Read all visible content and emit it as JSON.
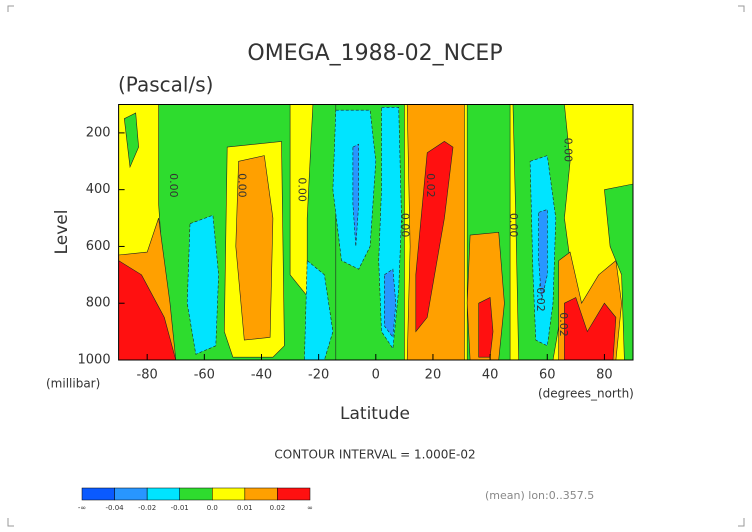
{
  "chart_data": {
    "type": "contour",
    "title": "OMEGA_1988-02_NCEP",
    "subtitle": "(Pascal/s)",
    "x_label": "Latitude",
    "y_label": "Level",
    "x_unit": "(degrees_north)",
    "y_unit": "(millibar)",
    "xlim": [
      -90,
      90
    ],
    "ylim": [
      1000,
      100
    ],
    "xticks": [
      -80,
      -60,
      -40,
      -20,
      0,
      20,
      40,
      60,
      80
    ],
    "yticks": [
      200,
      400,
      600,
      800,
      1000
    ],
    "contour_interval_text": "CONTOUR INTERVAL = 1.000E-02",
    "footer_note": "(mean) lon:0..357.5",
    "colorbar": {
      "colors": [
        "#0a5aff",
        "#2896ff",
        "#00e4ff",
        "#2edc2e",
        "#ffff00",
        "#ffa000",
        "#ff1010"
      ],
      "labels": [
        "-∞",
        "-0.04",
        "-0.02",
        "-0.01",
        "0.0",
        "0.01",
        "0.02",
        "∞"
      ]
    },
    "regions": [
      {
        "bin": 4,
        "points": [
          [
            -90,
            100
          ],
          [
            90,
            100
          ],
          [
            90,
            1000
          ],
          [
            -90,
            1000
          ]
        ]
      },
      {
        "bin": 3,
        "points": [
          [
            -76,
            100
          ],
          [
            -30,
            100
          ],
          [
            -30,
            700
          ],
          [
            -22,
            800
          ],
          [
            -22,
            1000
          ],
          [
            -72,
            1000
          ],
          [
            -74,
            750
          ],
          [
            -76,
            450
          ]
        ]
      },
      {
        "bin": 3,
        "points": [
          [
            -22,
            100
          ],
          [
            -14,
            100
          ],
          [
            -14,
            1000
          ],
          [
            -24,
            1000
          ],
          [
            -24,
            500
          ]
        ]
      },
      {
        "bin": 4,
        "points": [
          [
            -52,
            250
          ],
          [
            -33,
            230
          ],
          [
            -32,
            950
          ],
          [
            -36,
            990
          ],
          [
            -50,
            990
          ],
          [
            -53,
            900
          ]
        ]
      },
      {
        "bin": 5,
        "points": [
          [
            -48,
            300
          ],
          [
            -39,
            280
          ],
          [
            -36,
            500
          ],
          [
            -37,
            920
          ],
          [
            -46,
            930
          ],
          [
            -49,
            600
          ]
        ]
      },
      {
        "bin": 2,
        "points": [
          [
            -65,
            520
          ],
          [
            -57,
            490
          ],
          [
            -55,
            700
          ],
          [
            -56,
            950
          ],
          [
            -63,
            980
          ],
          [
            -66,
            800
          ]
        ]
      },
      {
        "bin": 3,
        "points": [
          [
            -14,
            100
          ],
          [
            10,
            100
          ],
          [
            10,
            1000
          ],
          [
            -14,
            1000
          ]
        ]
      },
      {
        "bin": 2,
        "points": [
          [
            -14,
            120
          ],
          [
            -2,
            120
          ],
          [
            0,
            300
          ],
          [
            -2,
            600
          ],
          [
            -6,
            680
          ],
          [
            -12,
            650
          ],
          [
            -15,
            400
          ]
        ]
      },
      {
        "bin": 2,
        "points": [
          [
            2,
            110
          ],
          [
            8,
            110
          ],
          [
            9,
            500
          ],
          [
            8,
            750
          ],
          [
            6,
            960
          ],
          [
            2,
            900
          ],
          [
            1,
            650
          ],
          [
            2,
            400
          ]
        ]
      },
      {
        "bin": 2,
        "points": [
          [
            -24,
            650
          ],
          [
            -18,
            700
          ],
          [
            -15,
            900
          ],
          [
            -18,
            1000
          ],
          [
            -25,
            1000
          ]
        ]
      },
      {
        "bin": 1,
        "points": [
          [
            -8,
            250
          ],
          [
            -6,
            240
          ],
          [
            -6,
            450
          ],
          [
            -7,
            600
          ],
          [
            -8,
            450
          ]
        ]
      },
      {
        "bin": 1,
        "points": [
          [
            3,
            700
          ],
          [
            6,
            680
          ],
          [
            7,
            800
          ],
          [
            6,
            920
          ],
          [
            3,
            880
          ]
        ]
      },
      {
        "bin": 5,
        "points": [
          [
            11,
            100
          ],
          [
            31,
            100
          ],
          [
            31,
            1000
          ],
          [
            11,
            1000
          ],
          [
            12,
            600
          ]
        ]
      },
      {
        "bin": 6,
        "points": [
          [
            18,
            270
          ],
          [
            24,
            230
          ],
          [
            27,
            250
          ],
          [
            24,
            500
          ],
          [
            18,
            850
          ],
          [
            14,
            900
          ],
          [
            14,
            700
          ]
        ]
      },
      {
        "bin": 3,
        "points": [
          [
            32,
            100
          ],
          [
            47,
            100
          ],
          [
            47,
            1000
          ],
          [
            32,
            1000
          ]
        ]
      },
      {
        "bin": 5,
        "points": [
          [
            33,
            560
          ],
          [
            43,
            550
          ],
          [
            45,
            800
          ],
          [
            43,
            1000
          ],
          [
            33,
            1000
          ],
          [
            32,
            800
          ]
        ]
      },
      {
        "bin": 6,
        "points": [
          [
            36,
            800
          ],
          [
            40,
            780
          ],
          [
            41,
            900
          ],
          [
            40,
            990
          ],
          [
            36,
            990
          ]
        ]
      },
      {
        "bin": 3,
        "points": [
          [
            48,
            100
          ],
          [
            66,
            100
          ],
          [
            68,
            300
          ],
          [
            66,
            500
          ],
          [
            68,
            650
          ],
          [
            62,
            1000
          ],
          [
            50,
            1000
          ],
          [
            49,
            500
          ]
        ]
      },
      {
        "bin": 2,
        "points": [
          [
            54,
            300
          ],
          [
            60,
            280
          ],
          [
            63,
            500
          ],
          [
            62,
            800
          ],
          [
            60,
            950
          ],
          [
            56,
            930
          ],
          [
            55,
            700
          ]
        ]
      },
      {
        "bin": 1,
        "points": [
          [
            57,
            480
          ],
          [
            60,
            470
          ],
          [
            60,
            700
          ],
          [
            58,
            790
          ],
          [
            57,
            650
          ]
        ]
      },
      {
        "bin": 3,
        "points": [
          [
            80,
            400
          ],
          [
            90,
            380
          ],
          [
            90,
            1000
          ],
          [
            87,
            1000
          ],
          [
            86,
            700
          ],
          [
            82,
            600
          ]
        ]
      },
      {
        "bin": 5,
        "points": [
          [
            64,
            650
          ],
          [
            68,
            620
          ],
          [
            72,
            800
          ],
          [
            78,
            700
          ],
          [
            84,
            650
          ],
          [
            86,
            800
          ],
          [
            84,
            1000
          ],
          [
            64,
            1000
          ]
        ]
      },
      {
        "bin": 6,
        "points": [
          [
            66,
            800
          ],
          [
            70,
            780
          ],
          [
            74,
            900
          ],
          [
            80,
            800
          ],
          [
            84,
            850
          ],
          [
            83,
            1000
          ],
          [
            66,
            1000
          ]
        ]
      },
      {
        "bin": 5,
        "points": [
          [
            -90,
            630
          ],
          [
            -80,
            620
          ],
          [
            -76,
            500
          ],
          [
            -72,
            800
          ],
          [
            -70,
            1000
          ],
          [
            -90,
            1000
          ]
        ]
      },
      {
        "bin": 6,
        "points": [
          [
            -90,
            650
          ],
          [
            -82,
            700
          ],
          [
            -74,
            850
          ],
          [
            -70,
            1000
          ],
          [
            -90,
            1000
          ]
        ]
      },
      {
        "bin": 3,
        "points": [
          [
            -88,
            150
          ],
          [
            -84,
            130
          ],
          [
            -83,
            250
          ],
          [
            -86,
            320
          ]
        ]
      }
    ],
    "contour_labels": [
      {
        "text": "0.00",
        "x": -71,
        "y": 385
      },
      {
        "text": "0.00",
        "x": -47,
        "y": 385
      },
      {
        "text": "0.00",
        "x": -26,
        "y": 400
      },
      {
        "text": "0.02",
        "x": 19,
        "y": 385
      },
      {
        "text": "0.00",
        "x": 10,
        "y": 525
      },
      {
        "text": "0.00",
        "x": 48,
        "y": 525
      },
      {
        "text": "-0.02",
        "x": 57.5,
        "y": 780
      },
      {
        "text": "0.00",
        "x": 67,
        "y": 260
      },
      {
        "text": "0.02",
        "x": 65.5,
        "y": 875
      }
    ]
  }
}
